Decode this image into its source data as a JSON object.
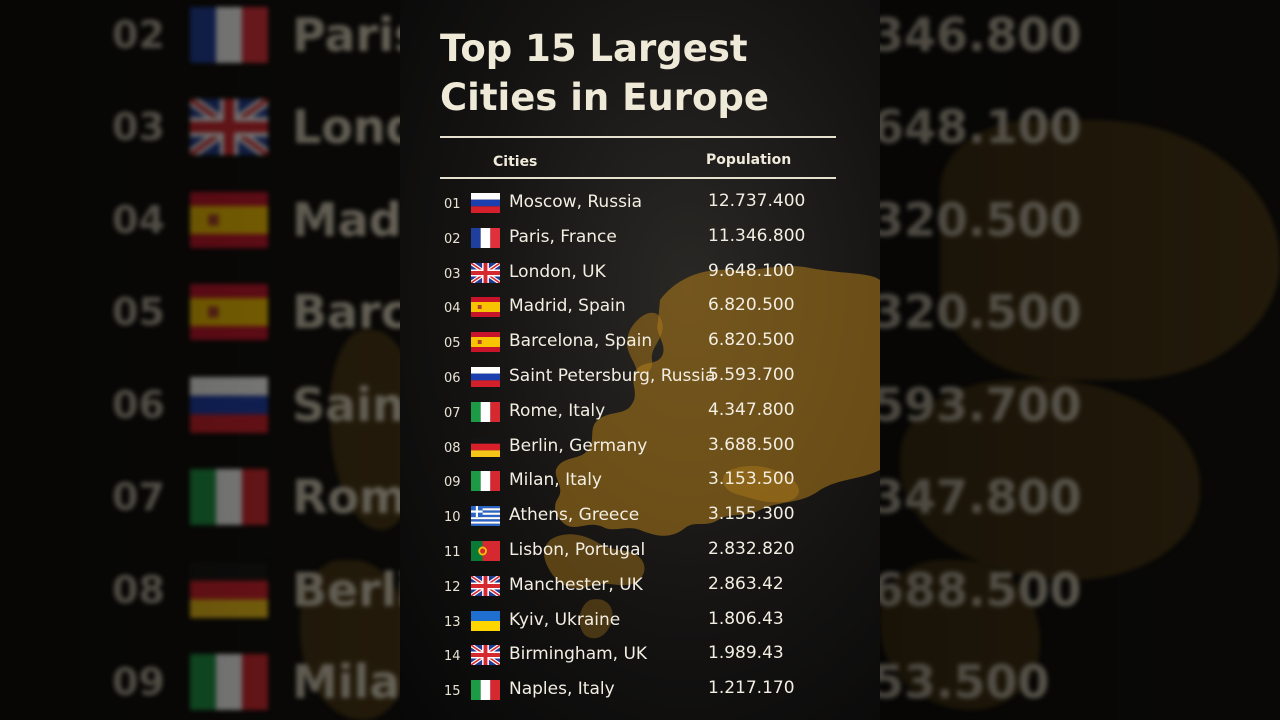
{
  "title": {
    "line1": "Top 15 Largest",
    "line2": "Cities in Europe"
  },
  "headers": {
    "cities": "Cities",
    "population": "Population"
  },
  "rows": [
    {
      "num": "01",
      "city": "Moscow, Russia",
      "population": "12.737.400",
      "flag": "russia"
    },
    {
      "num": "02",
      "city": "Paris, France",
      "population": "11.346.800",
      "flag": "france"
    },
    {
      "num": "03",
      "city": "London, UK",
      "population": "9.648.100",
      "flag": "uk"
    },
    {
      "num": "04",
      "city": "Madrid, Spain",
      "population": "6.820.500",
      "flag": "spain"
    },
    {
      "num": "05",
      "city": "Barcelona, Spain",
      "population": "6.820.500",
      "flag": "spain"
    },
    {
      "num": "06",
      "city": "Saint Petersburg, Russia",
      "population": "5.593.700",
      "flag": "russia"
    },
    {
      "num": "07",
      "city": "Rome, Italy",
      "population": "4.347.800",
      "flag": "italy"
    },
    {
      "num": "08",
      "city": "Berlin, Germany",
      "population": "3.688.500",
      "flag": "germany"
    },
    {
      "num": "09",
      "city": "Milan, Italy",
      "population": "3.153.500",
      "flag": "italy"
    },
    {
      "num": "10",
      "city": "Athens, Greece",
      "population": "3.155.300",
      "flag": "greece"
    },
    {
      "num": "11",
      "city": "Lisbon, Portugal",
      "population": "2.832.820",
      "flag": "portugal"
    },
    {
      "num": "12",
      "city": "Manchester, UK",
      "population": "2.863.42",
      "flag": "uk"
    },
    {
      "num": "13",
      "city": "Kyiv, Ukraine",
      "population": "1.806.43",
      "flag": "ukraine"
    },
    {
      "num": "14",
      "city": "Birmingham, UK",
      "population": "1.989.43",
      "flag": "uk"
    },
    {
      "num": "15",
      "city": "Naples, Italy",
      "population": "1.217.170",
      "flag": "italy"
    }
  ],
  "background_left": [
    {
      "num": "02",
      "city": "Paris,",
      "flag": "france"
    },
    {
      "num": "03",
      "city": "Lond",
      "flag": "uk"
    },
    {
      "num": "04",
      "city": "Madr",
      "flag": "spain"
    },
    {
      "num": "05",
      "city": "Barce",
      "flag": "spain"
    },
    {
      "num": "06",
      "city": "Saint",
      "flag": "russia"
    },
    {
      "num": "07",
      "city": "Rome",
      "flag": "italy"
    },
    {
      "num": "08",
      "city": "Berli",
      "flag": "germany"
    },
    {
      "num": "09",
      "city": "Milar",
      "flag": "italy"
    }
  ],
  "background_right": [
    {
      "population": "346.800"
    },
    {
      "population": "648.100"
    },
    {
      "population": "320.500"
    },
    {
      "population": "320.500"
    },
    {
      "population": "593.700"
    },
    {
      "population": "347.800"
    },
    {
      "population": "688.500"
    },
    {
      "population": "53.500"
    }
  ],
  "colors": {
    "background": "#000000",
    "text": "#f2ede0",
    "map": "#c08a1e"
  }
}
